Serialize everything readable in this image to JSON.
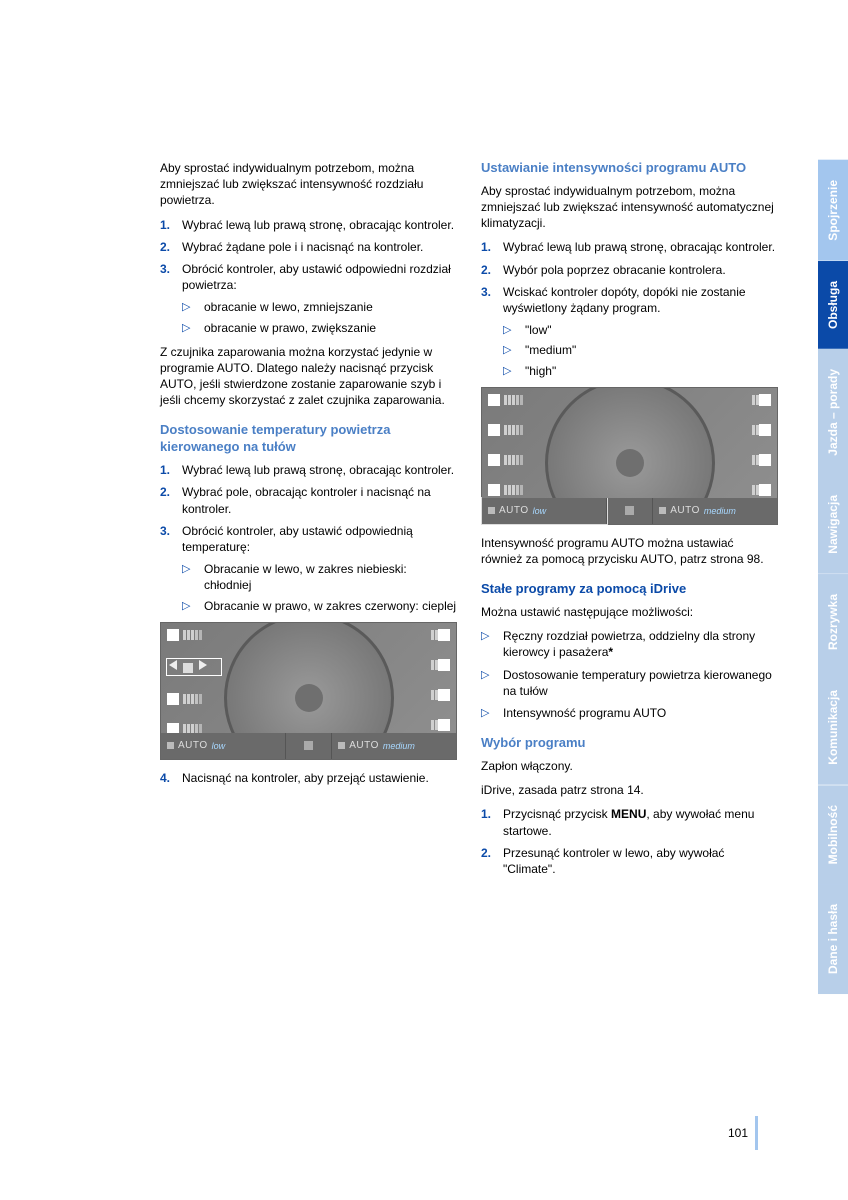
{
  "leftCol": {
    "intro": "Aby sprostać indywidualnym potrzebom, można zmniejszać lub zwiększać intensywność rozdziału powietrza.",
    "steps1": [
      "Wybrać lewą lub prawą stronę, obracając kontroler.",
      "Wybrać żądane pole i i nacisnąć na kontroler.",
      "Obrócić kontroler, aby ustawić odpowiedni rozdział powietrza:"
    ],
    "subs1": [
      "obracanie w lewo, zmniejszanie",
      "obracanie w prawo, zwiększanie"
    ],
    "note1": "Z czujnika zaparowania można korzystać jedynie w programie AUTO. Dlatego należy nacisnąć przycisk AUTO, jeśli stwierdzone zostanie zaparowanie szyb i jeśli chcemy skorzystać z zalet czujnika zaparowania.",
    "heading1": "Dostosowanie temperatury powietrza kierowanego na tułów",
    "steps2": [
      "Wybrać lewą lub prawą stronę, obracając kontroler.",
      "Wybrać pole, obracając kontroler i nacisnąć na kontroler.",
      "Obrócić kontroler, aby ustawić odpowiednią temperaturę:"
    ],
    "subs2": [
      "Obracanie w lewo, w zakres niebieski: chłodniej",
      "Obracanie w prawo, w zakres czerwony: cieplej"
    ],
    "step4": "Nacisnąć na kontroler, aby przejąć ustawienie."
  },
  "rightCol": {
    "heading1": "Ustawianie intensywności programu AUTO",
    "intro": "Aby sprostać indywidualnym potrzebom, można zmniejszać lub zwiększać intensywność automatycznej klimatyzacji.",
    "steps1": [
      "Wybrać lewą lub prawą stronę, obracając kontroler.",
      "Wybór pola poprzez obracanie kontrolera.",
      "Wciskać kontroler dopóty, dopóki nie zostanie wyświetlony żądany program."
    ],
    "subs1": [
      "\"low\"",
      "\"medium\"",
      "\"high\""
    ],
    "caption1": "Intensywność programu AUTO można ustawiać również za pomocą przycisku AUTO, patrz strona 98.",
    "heading2": "Stałe programy za pomocą iDrive",
    "optionsIntro": "Można ustawić następujące możliwości:",
    "options": [
      "Ręczny rozdział powietrza, oddzielny dla strony kierowcy i pasażera",
      "Dostosowanie temperatury powietrza kierowanego na tułów",
      "Intensywność programu AUTO"
    ],
    "heading3": "Wybór programu",
    "line1": "Zapłon włączony.",
    "line2": "iDrive, zasada patrz strona 14.",
    "steps2": [
      {
        "pre": "Przycisnąć przycisk ",
        "bold": "MENU",
        "post": ", aby wywołać menu startowe."
      },
      {
        "pre": "Przesunąć kontroler w lewo, aby wywołać \"Climate\".",
        "bold": "",
        "post": ""
      }
    ]
  },
  "figure": {
    "autoLow": "AUTO",
    "low": "low",
    "autoMed": "AUTO",
    "med": "medium"
  },
  "tabs": [
    {
      "label": "Spojrzenie",
      "bg": "#a3c6ee",
      "color": "#ffffff"
    },
    {
      "label": "Obsługa",
      "bg": "#0b4aa8",
      "color": "#ffffff"
    },
    {
      "label": "Jazda – porady",
      "bg": "#b8cfe9",
      "color": "#ffffff"
    },
    {
      "label": "Nawigacja",
      "bg": "#b8cfe9",
      "color": "#ffffff"
    },
    {
      "label": "Rozrywka",
      "bg": "#b8cfe9",
      "color": "#ffffff"
    },
    {
      "label": "Komunikacja",
      "bg": "#b8cfe9",
      "color": "#ffffff"
    },
    {
      "label": "Mobilność",
      "bg": "#b8cfe9",
      "color": "#ffffff"
    },
    {
      "label": "Dane i hasła",
      "bg": "#b8cfe9",
      "color": "#ffffff"
    }
  ],
  "pageNumber": "101"
}
